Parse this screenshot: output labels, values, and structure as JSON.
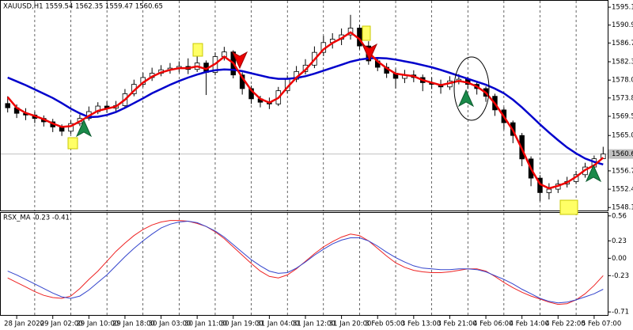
{
  "chart_data": [
    {
      "type": "candlestick",
      "title": "XAUUSD,H1  1559.54 1562.35 1559.47 1560.65",
      "up_color": "#ffffff",
      "down_color": "#000000",
      "open": [
        1572.5,
        1571.5,
        1570.2,
        1569.8,
        1569.0,
        1568.2,
        1567.0,
        1566.0,
        1567.8,
        1569.0,
        1570.6,
        1571.9,
        1571.4,
        1572.0,
        1574.8,
        1577.0,
        1578.6,
        1579.6,
        1580.4,
        1580.8,
        1581.2,
        1580.5,
        1582.0,
        1579.8,
        1583.5,
        1584.6,
        1579.2,
        1576.0,
        1573.6,
        1572.8,
        1572.4,
        1575.5,
        1578.2,
        1580.0,
        1581.5,
        1584.5,
        1586.8,
        1587.6,
        1588.6,
        1590.2,
        1586.0,
        1582.5,
        1581.0,
        1579.6,
        1578.4,
        1579.2,
        1578.6,
        1577.4,
        1577.0,
        1576.4,
        1577.8,
        1578.2,
        1577.0,
        1576.0,
        1574.2,
        1571.0,
        1568.0,
        1565.0,
        1559.5,
        1555.0,
        1551.6,
        1552.4,
        1553.6,
        1554.2,
        1555.8,
        1557.6,
        1559.54
      ],
      "high": [
        1574.2,
        1572.3,
        1571.4,
        1570.6,
        1569.7,
        1568.9,
        1567.6,
        1568.5,
        1569.9,
        1571.8,
        1572.8,
        1573.0,
        1573.1,
        1575.9,
        1578.1,
        1579.7,
        1580.9,
        1581.5,
        1582.0,
        1582.4,
        1583.1,
        1584.0,
        1582.6,
        1584.5,
        1585.8,
        1585.0,
        1579.8,
        1576.7,
        1574.3,
        1573.9,
        1576.4,
        1579.1,
        1581.3,
        1582.9,
        1585.9,
        1588.4,
        1589.0,
        1590.1,
        1593.3,
        1591.0,
        1587.1,
        1583.4,
        1582.0,
        1580.7,
        1580.4,
        1580.3,
        1579.3,
        1578.6,
        1578.1,
        1578.9,
        1579.4,
        1578.8,
        1577.6,
        1576.5,
        1574.8,
        1571.6,
        1568.5,
        1565.6,
        1560.1,
        1555.7,
        1553.8,
        1554.6,
        1555.3,
        1556.7,
        1558.6,
        1560.3,
        1562.35
      ],
      "low": [
        1570.4,
        1569.1,
        1568.6,
        1567.9,
        1567.1,
        1565.8,
        1564.9,
        1565.4,
        1567.2,
        1568.5,
        1570.0,
        1570.3,
        1570.6,
        1571.5,
        1574.2,
        1576.4,
        1577.8,
        1578.9,
        1579.5,
        1579.8,
        1579.4,
        1579.9,
        1574.5,
        1579.1,
        1582.6,
        1578.4,
        1574.6,
        1572.4,
        1571.6,
        1571.2,
        1571.9,
        1574.8,
        1577.5,
        1579.3,
        1580.8,
        1583.6,
        1585.4,
        1586.2,
        1587.5,
        1585.2,
        1581.6,
        1580.1,
        1578.5,
        1576.0,
        1577.3,
        1577.5,
        1575.4,
        1575.9,
        1574.8,
        1575.7,
        1577.0,
        1575.9,
        1574.6,
        1572.9,
        1569.6,
        1566.4,
        1563.2,
        1557.8,
        1553.1,
        1549.6,
        1550.0,
        1551.5,
        1552.8,
        1553.6,
        1555.1,
        1556.9,
        1559.47
      ],
      "close": [
        1571.5,
        1570.2,
        1569.8,
        1569.0,
        1568.2,
        1567.0,
        1566.0,
        1567.8,
        1569.0,
        1570.6,
        1571.9,
        1571.4,
        1572.0,
        1574.8,
        1577.0,
        1578.6,
        1579.6,
        1580.4,
        1580.8,
        1581.2,
        1580.5,
        1582.0,
        1579.8,
        1583.5,
        1584.6,
        1579.2,
        1576.0,
        1573.6,
        1572.8,
        1572.4,
        1575.5,
        1578.2,
        1580.0,
        1581.5,
        1584.5,
        1586.8,
        1587.6,
        1588.6,
        1590.2,
        1586.0,
        1582.5,
        1581.0,
        1579.6,
        1578.4,
        1579.2,
        1578.6,
        1577.4,
        1577.0,
        1576.4,
        1577.8,
        1578.2,
        1577.0,
        1576.0,
        1574.2,
        1571.0,
        1568.0,
        1565.0,
        1559.5,
        1555.0,
        1551.6,
        1552.4,
        1553.6,
        1554.2,
        1555.8,
        1557.6,
        1559.54,
        1560.65
      ],
      "series": [
        {
          "color": "#0000cc",
          "values": [
            1578.6,
            1577.7,
            1576.8,
            1575.8,
            1574.8,
            1573.8,
            1572.6,
            1571.3,
            1570.2,
            1569.3,
            1569.4,
            1569.8,
            1570.5,
            1571.5,
            1572.6,
            1573.7,
            1574.9,
            1575.9,
            1576.9,
            1577.8,
            1578.6,
            1579.3,
            1579.9,
            1580.3,
            1580.5,
            1580.4,
            1580.1,
            1579.6,
            1579.1,
            1578.6,
            1578.3,
            1578.3,
            1578.5,
            1578.9,
            1579.5,
            1580.2,
            1580.9,
            1581.6,
            1582.3,
            1582.8,
            1583.1,
            1583.2,
            1583.1,
            1582.8,
            1582.4,
            1582.0,
            1581.5,
            1581.0,
            1580.4,
            1579.7,
            1579.0,
            1578.3,
            1577.6,
            1576.9,
            1576.0,
            1574.9,
            1573.4,
            1571.6,
            1569.6,
            1567.6,
            1565.7,
            1563.9,
            1562.2,
            1560.8,
            1559.6,
            1558.8,
            1558.2
          ]
        },
        {
          "color": "#ee0000",
          "values": [
            1574.0,
            1571.5,
            1570.3,
            1569.6,
            1568.8,
            1567.8,
            1567.0,
            1567.2,
            1568.3,
            1569.6,
            1570.8,
            1571.3,
            1571.8,
            1573.4,
            1575.5,
            1577.4,
            1578.8,
            1579.8,
            1580.4,
            1580.8,
            1580.8,
            1581.2,
            1580.6,
            1581.8,
            1583.5,
            1582.0,
            1578.6,
            1575.6,
            1573.6,
            1572.7,
            1573.8,
            1576.3,
            1578.6,
            1580.4,
            1582.8,
            1585.2,
            1586.7,
            1587.8,
            1589.2,
            1587.6,
            1584.5,
            1582.4,
            1580.8,
            1579.5,
            1579.2,
            1578.9,
            1578.0,
            1577.4,
            1576.8,
            1577.3,
            1577.8,
            1577.4,
            1576.5,
            1575.0,
            1572.5,
            1569.4,
            1566.2,
            1561.8,
            1557.2,
            1553.6,
            1552.6,
            1553.2,
            1554.0,
            1555.3,
            1556.9,
            1558.0,
            1559.8
          ]
        }
      ],
      "ylim": [
        1547.4,
        1596.6
      ],
      "yticks": [
        {
          "value": 1595.1,
          "label": "1595.10"
        },
        {
          "value": 1590.9,
          "label": "1590.90"
        },
        {
          "value": 1586.7,
          "label": "1586.70"
        },
        {
          "value": 1582.3,
          "label": "1582.30"
        },
        {
          "value": 1578.0,
          "label": "1578.00"
        },
        {
          "value": 1573.8,
          "label": "1573.80"
        },
        {
          "value": 1569.5,
          "label": "1569.50"
        },
        {
          "value": 1565.0,
          "label": "1565.00"
        },
        1560.65,
        {
          "value": 1556.7,
          "label": "1556.70"
        },
        {
          "value": 1552.4,
          "label": "1552.40"
        },
        {
          "value": 1548.1,
          "label": "1548.10"
        }
      ]
    },
    {
      "type": "line",
      "title": "RSX_MA -0.23 -0.41",
      "grid": true,
      "categories": [
        null,
        "28 Jan 2020",
        null,
        null,
        null,
        "29 Jan 02:00",
        null,
        null,
        null,
        "29 Jan 10:00",
        null,
        null,
        null,
        "29 Jan 18:00",
        null,
        null,
        null,
        "30 Jan 03:00",
        null,
        null,
        null,
        "30 Jan 11:00",
        null,
        null,
        null,
        "30 Jan 19:00",
        null,
        null,
        null,
        "31 Jan 04:00",
        null,
        null,
        null,
        "31 Jan 12:00",
        null,
        null,
        null,
        "31 Jan 20:00",
        null,
        null,
        null,
        "3 Feb 05:00",
        null,
        null,
        null,
        "3 Feb 13:00",
        null,
        null,
        null,
        "3 Feb 21:00",
        null,
        null,
        null,
        "4 Feb 06:00",
        null,
        null,
        null,
        "4 Feb 14:00",
        null,
        null,
        null,
        "4 Feb 22:00",
        null,
        null,
        null,
        "5 Feb 07:00",
        null
      ],
      "series": [
        {
          "color": "#ee2222",
          "values": [
            -0.26,
            -0.32,
            -0.38,
            -0.44,
            -0.49,
            -0.52,
            -0.53,
            -0.5,
            -0.4,
            -0.28,
            -0.17,
            -0.04,
            0.09,
            0.2,
            0.3,
            0.38,
            0.44,
            0.48,
            0.5,
            0.5,
            0.49,
            0.46,
            0.42,
            0.35,
            0.26,
            0.15,
            0.04,
            -0.07,
            -0.17,
            -0.24,
            -0.26,
            -0.22,
            -0.14,
            -0.04,
            0.06,
            0.15,
            0.22,
            0.28,
            0.32,
            0.3,
            0.23,
            0.13,
            0.03,
            -0.06,
            -0.12,
            -0.16,
            -0.18,
            -0.19,
            -0.19,
            -0.18,
            -0.16,
            -0.14,
            -0.14,
            -0.17,
            -0.24,
            -0.32,
            -0.39,
            -0.45,
            -0.5,
            -0.54,
            -0.58,
            -0.61,
            -0.6,
            -0.55,
            -0.47,
            -0.36,
            -0.23
          ]
        },
        {
          "color": "#3344cc",
          "values": [
            -0.17,
            -0.22,
            -0.28,
            -0.34,
            -0.4,
            -0.46,
            -0.51,
            -0.53,
            -0.5,
            -0.42,
            -0.32,
            -0.22,
            -0.1,
            0.02,
            0.13,
            0.23,
            0.32,
            0.4,
            0.45,
            0.48,
            0.49,
            0.47,
            0.42,
            0.36,
            0.28,
            0.18,
            0.08,
            -0.02,
            -0.1,
            -0.17,
            -0.2,
            -0.19,
            -0.13,
            -0.05,
            0.04,
            0.12,
            0.19,
            0.24,
            0.27,
            0.27,
            0.23,
            0.16,
            0.08,
            0.01,
            -0.05,
            -0.1,
            -0.13,
            -0.14,
            -0.15,
            -0.15,
            -0.14,
            -0.14,
            -0.15,
            -0.18,
            -0.23,
            -0.28,
            -0.34,
            -0.41,
            -0.47,
            -0.53,
            -0.57,
            -0.59,
            -0.58,
            -0.55,
            -0.51,
            -0.47,
            -0.41
          ]
        }
      ],
      "ylim": [
        -0.75,
        0.6
      ],
      "yticks": [
        0.56,
        0.23,
        {
          "value": 0,
          "label": "0.00"
        },
        -0.23,
        -0.71
      ]
    }
  ]
}
